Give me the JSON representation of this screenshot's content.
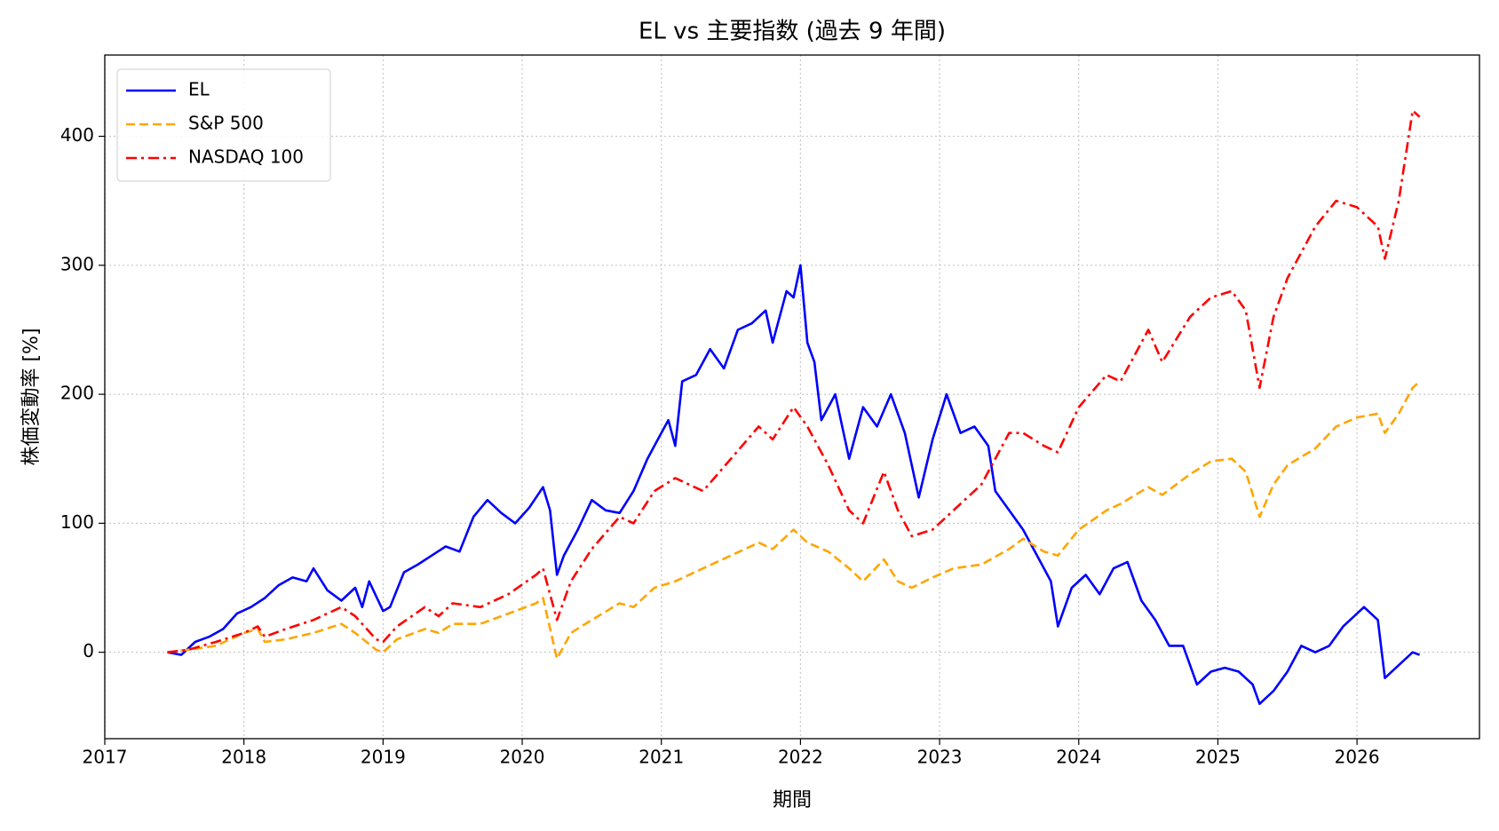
{
  "chart_data": {
    "type": "line",
    "title": "EL vs 主要指数 (過去 9 年間)",
    "xlabel": "期間",
    "ylabel": "株価変動率 [%]",
    "xlim": [
      2017,
      2026.88
    ],
    "xticks": [
      2017,
      2018,
      2019,
      2020,
      2021,
      2022,
      2023,
      2024,
      2025,
      2026
    ],
    "ylim": [
      -67,
      463
    ],
    "yticks": [
      0,
      100,
      200,
      300,
      400
    ],
    "grid": true,
    "legend": "upper-left",
    "series": [
      {
        "name": "EL",
        "color": "#0000ff",
        "linestyle": "solid",
        "x": [
          2017.45,
          2017.55,
          2017.65,
          2017.75,
          2017.85,
          2017.95,
          2018.05,
          2018.15,
          2018.25,
          2018.35,
          2018.45,
          2018.5,
          2018.6,
          2018.7,
          2018.8,
          2018.85,
          2018.9,
          2019.0,
          2019.05,
          2019.15,
          2019.25,
          2019.35,
          2019.45,
          2019.55,
          2019.65,
          2019.75,
          2019.85,
          2019.95,
          2020.05,
          2020.15,
          2020.2,
          2020.25,
          2020.3,
          2020.4,
          2020.5,
          2020.6,
          2020.7,
          2020.8,
          2020.9,
          2021.0,
          2021.05,
          2021.1,
          2021.15,
          2021.25,
          2021.35,
          2021.45,
          2021.55,
          2021.65,
          2021.75,
          2021.8,
          2021.9,
          2021.95,
          2022.0,
          2022.05,
          2022.1,
          2022.15,
          2022.25,
          2022.35,
          2022.45,
          2022.55,
          2022.65,
          2022.75,
          2022.85,
          2022.95,
          2023.05,
          2023.15,
          2023.25,
          2023.35,
          2023.4,
          2023.5,
          2023.6,
          2023.7,
          2023.8,
          2023.85,
          2023.95,
          2024.05,
          2024.15,
          2024.25,
          2024.35,
          2024.45,
          2024.55,
          2024.65,
          2024.75,
          2024.85,
          2024.95,
          2025.05,
          2025.15,
          2025.25,
          2025.3,
          2025.4,
          2025.5,
          2025.6,
          2025.7,
          2025.8,
          2025.9,
          2026.0,
          2026.05,
          2026.15,
          2026.2,
          2026.3,
          2026.4,
          2026.45
        ],
        "values": [
          0,
          -2,
          8,
          12,
          18,
          30,
          35,
          42,
          52,
          58,
          55,
          65,
          48,
          40,
          50,
          35,
          55,
          32,
          35,
          62,
          68,
          75,
          82,
          78,
          105,
          118,
          108,
          100,
          112,
          128,
          110,
          60,
          75,
          95,
          118,
          110,
          108,
          125,
          150,
          170,
          180,
          160,
          210,
          215,
          235,
          220,
          250,
          255,
          265,
          240,
          280,
          275,
          300,
          240,
          225,
          180,
          200,
          150,
          190,
          175,
          200,
          170,
          120,
          165,
          200,
          170,
          175,
          160,
          125,
          110,
          95,
          75,
          55,
          20,
          50,
          60,
          45,
          65,
          70,
          40,
          25,
          5,
          5,
          -25,
          -15,
          -12,
          -15,
          -25,
          -40,
          -30,
          -15,
          5,
          0,
          5,
          20,
          30,
          35,
          25,
          -20,
          -10,
          0,
          -2
        ]
      },
      {
        "name": "S&P 500",
        "color": "#ffa500",
        "linestyle": "dashed",
        "x": [
          2017.45,
          2017.6,
          2017.8,
          2018.0,
          2018.1,
          2018.15,
          2018.3,
          2018.5,
          2018.7,
          2018.8,
          2018.95,
          2019.0,
          2019.1,
          2019.3,
          2019.4,
          2019.5,
          2019.7,
          2019.9,
          2020.1,
          2020.15,
          2020.25,
          2020.35,
          2020.5,
          2020.7,
          2020.8,
          2020.95,
          2021.1,
          2021.3,
          2021.5,
          2021.7,
          2021.8,
          2021.95,
          2022.05,
          2022.2,
          2022.35,
          2022.45,
          2022.6,
          2022.7,
          2022.8,
          2022.95,
          2023.1,
          2023.3,
          2023.5,
          2023.6,
          2023.75,
          2023.85,
          2024.0,
          2024.2,
          2024.3,
          2024.5,
          2024.6,
          2024.8,
          2024.95,
          2025.1,
          2025.2,
          2025.3,
          2025.4,
          2025.5,
          2025.7,
          2025.85,
          2026.0,
          2026.15,
          2026.2,
          2026.3,
          2026.4,
          2026.45
        ],
        "values": [
          0,
          2,
          5,
          15,
          18,
          8,
          10,
          15,
          22,
          15,
          2,
          0,
          10,
          18,
          15,
          22,
          22,
          30,
          38,
          42,
          -5,
          15,
          25,
          38,
          35,
          50,
          55,
          65,
          75,
          85,
          80,
          95,
          85,
          78,
          65,
          55,
          72,
          55,
          50,
          58,
          65,
          68,
          80,
          88,
          78,
          75,
          95,
          110,
          115,
          128,
          122,
          138,
          148,
          150,
          140,
          105,
          130,
          145,
          158,
          175,
          182,
          185,
          170,
          185,
          205,
          210
        ]
      },
      {
        "name": "NASDAQ 100",
        "color": "#ff0000",
        "linestyle": "dashdot",
        "x": [
          2017.45,
          2017.6,
          2017.8,
          2018.0,
          2018.1,
          2018.15,
          2018.3,
          2018.5,
          2018.7,
          2018.8,
          2018.95,
          2019.0,
          2019.1,
          2019.3,
          2019.4,
          2019.5,
          2019.7,
          2019.9,
          2020.1,
          2020.15,
          2020.25,
          2020.35,
          2020.5,
          2020.7,
          2020.8,
          2020.95,
          2021.1,
          2021.3,
          2021.5,
          2021.7,
          2021.8,
          2021.95,
          2022.05,
          2022.2,
          2022.35,
          2022.45,
          2022.6,
          2022.7,
          2022.8,
          2022.95,
          2023.1,
          2023.3,
          2023.5,
          2023.6,
          2023.75,
          2023.85,
          2024.0,
          2024.2,
          2024.3,
          2024.5,
          2024.6,
          2024.8,
          2024.95,
          2025.1,
          2025.2,
          2025.3,
          2025.4,
          2025.5,
          2025.7,
          2025.85,
          2026.0,
          2026.15,
          2026.2,
          2026.3,
          2026.4,
          2026.45
        ],
        "values": [
          0,
          2,
          8,
          15,
          20,
          12,
          18,
          25,
          35,
          28,
          10,
          8,
          20,
          35,
          28,
          38,
          35,
          45,
          60,
          65,
          25,
          55,
          80,
          105,
          100,
          125,
          135,
          125,
          150,
          175,
          165,
          190,
          175,
          145,
          110,
          100,
          140,
          110,
          90,
          95,
          110,
          130,
          170,
          170,
          160,
          155,
          190,
          215,
          210,
          250,
          225,
          260,
          275,
          280,
          265,
          205,
          260,
          290,
          330,
          350,
          345,
          330,
          305,
          350,
          420,
          415
        ]
      }
    ]
  }
}
